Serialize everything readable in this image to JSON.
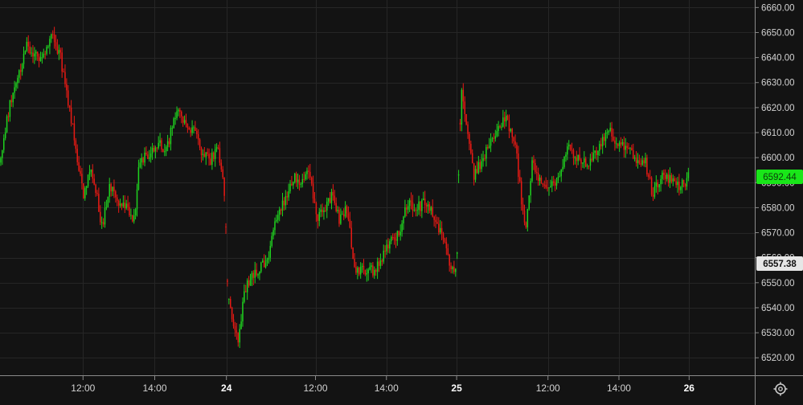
{
  "colors": {
    "background": "#131313",
    "grid": "#262626",
    "axis_line": "#8a8a8a",
    "up": "#1fd21f",
    "down": "#e81a14",
    "tick_text": "#d2d2d2",
    "last_price_bg": "#19e619",
    "last_price_text": "#0c3a0c",
    "crosshair_price_bg": "#e6e6e6",
    "crosshair_price_text": "#111111"
  },
  "icons": {
    "settings": "gear-icon"
  },
  "chart_data": {
    "type": "candlestick",
    "title": "",
    "xlabel": "",
    "ylabel": "",
    "ylim": [
      6513,
      6663
    ],
    "y_ticks": [
      "6520.00",
      "6530.00",
      "6540.00",
      "6550.00",
      "6560.00",
      "6570.00",
      "6580.00",
      "6590.00",
      "6600.00",
      "6610.00",
      "6620.00",
      "6630.00",
      "6640.00",
      "6650.00",
      "6660.00"
    ],
    "x_ticks": [
      {
        "label": "12:00",
        "t": 0.11,
        "day": false
      },
      {
        "label": "14:00",
        "t": 0.205,
        "day": false
      },
      {
        "label": "24",
        "t": 0.3,
        "day": true
      },
      {
        "label": "12:00",
        "t": 0.418,
        "day": false
      },
      {
        "label": "14:00",
        "t": 0.512,
        "day": false
      },
      {
        "label": "25",
        "t": 0.605,
        "day": true
      },
      {
        "label": "12:00",
        "t": 0.726,
        "day": false
      },
      {
        "label": "14:00",
        "t": 0.82,
        "day": false
      },
      {
        "label": "26",
        "t": 0.913,
        "day": true
      }
    ],
    "last_price": "6592.44",
    "crosshair_price": "6557.38",
    "path": [
      [
        0.0,
        6598
      ],
      [
        0.012,
        6620
      ],
      [
        0.022,
        6630
      ],
      [
        0.035,
        6645
      ],
      [
        0.048,
        6640
      ],
      [
        0.058,
        6640
      ],
      [
        0.068,
        6650
      ],
      [
        0.08,
        6640
      ],
      [
        0.092,
        6620
      ],
      [
        0.1,
        6605
      ],
      [
        0.11,
        6585
      ],
      [
        0.12,
        6595
      ],
      [
        0.128,
        6585
      ],
      [
        0.135,
        6572
      ],
      [
        0.145,
        6588
      ],
      [
        0.158,
        6582
      ],
      [
        0.168,
        6580
      ],
      [
        0.178,
        6575
      ],
      [
        0.185,
        6600
      ],
      [
        0.198,
        6600
      ],
      [
        0.21,
        6606
      ],
      [
        0.22,
        6602
      ],
      [
        0.232,
        6618
      ],
      [
        0.245,
        6615
      ],
      [
        0.258,
        6610
      ],
      [
        0.268,
        6602
      ],
      [
        0.278,
        6598
      ],
      [
        0.288,
        6605
      ],
      [
        0.298,
        6585
      ],
      [
        0.301,
        6550
      ],
      [
        0.308,
        6532
      ],
      [
        0.316,
        6528
      ],
      [
        0.325,
        6548
      ],
      [
        0.34,
        6555
      ],
      [
        0.355,
        6560
      ],
      [
        0.365,
        6575
      ],
      [
        0.375,
        6582
      ],
      [
        0.388,
        6592
      ],
      [
        0.4,
        6590
      ],
      [
        0.41,
        6595
      ],
      [
        0.42,
        6575
      ],
      [
        0.43,
        6580
      ],
      [
        0.44,
        6585
      ],
      [
        0.45,
        6575
      ],
      [
        0.46,
        6580
      ],
      [
        0.47,
        6555
      ],
      [
        0.482,
        6555
      ],
      [
        0.495,
        6555
      ],
      [
        0.505,
        6560
      ],
      [
        0.515,
        6565
      ],
      [
        0.528,
        6570
      ],
      [
        0.54,
        6582
      ],
      [
        0.552,
        6580
      ],
      [
        0.565,
        6582
      ],
      [
        0.578,
        6575
      ],
      [
        0.59,
        6565
      ],
      [
        0.598,
        6555
      ],
      [
        0.605,
        6553
      ],
      [
        0.608,
        6600
      ],
      [
        0.612,
        6628
      ],
      [
        0.62,
        6610
      ],
      [
        0.628,
        6592
      ],
      [
        0.64,
        6600
      ],
      [
        0.655,
        6610
      ],
      [
        0.67,
        6615
      ],
      [
        0.682,
        6608
      ],
      [
        0.69,
        6585
      ],
      [
        0.697,
        6570
      ],
      [
        0.705,
        6600
      ],
      [
        0.715,
        6590
      ],
      [
        0.73,
        6588
      ],
      [
        0.745,
        6595
      ],
      [
        0.752,
        6605
      ],
      [
        0.765,
        6600
      ],
      [
        0.78,
        6598
      ],
      [
        0.795,
        6605
      ],
      [
        0.805,
        6612
      ],
      [
        0.818,
        6605
      ],
      [
        0.83,
        6605
      ],
      [
        0.842,
        6600
      ],
      [
        0.855,
        6598
      ],
      [
        0.865,
        6585
      ],
      [
        0.878,
        6595
      ],
      [
        0.89,
        6590
      ],
      [
        0.9,
        6588
      ],
      [
        0.912,
        6592
      ]
    ]
  }
}
